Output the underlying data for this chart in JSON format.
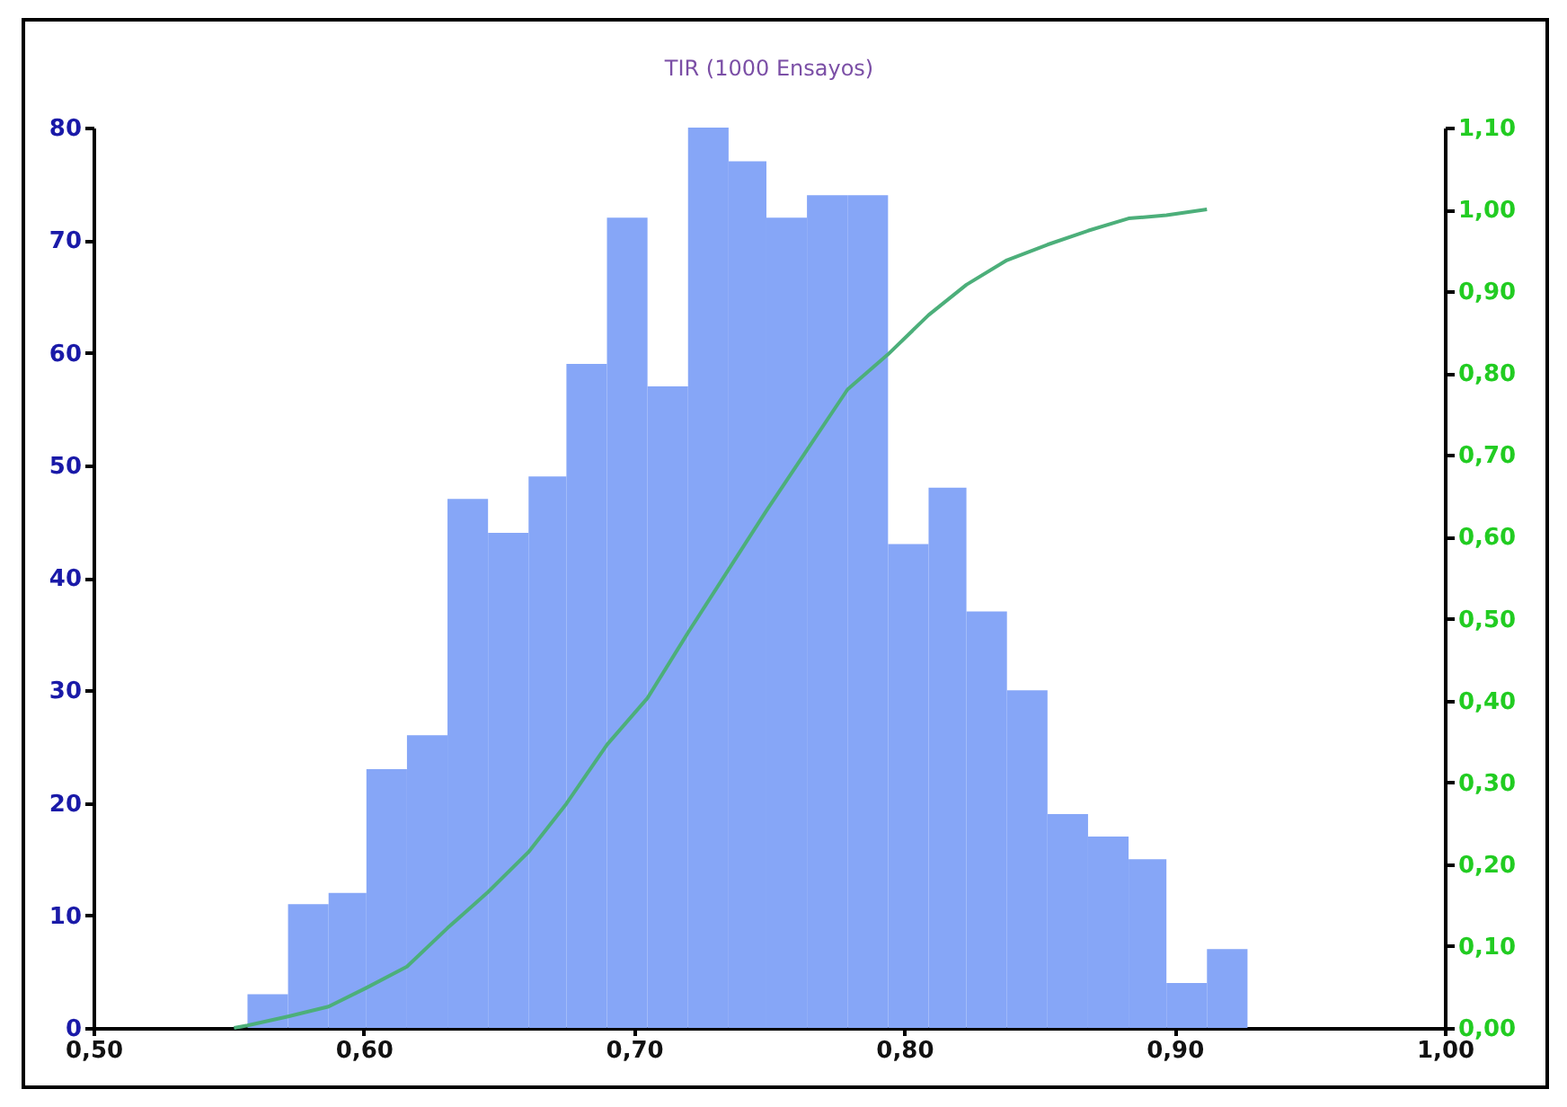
{
  "chart_data": {
    "type": "histogram",
    "title": "TIR (1000 Ensayos)",
    "bins": [
      0.557,
      0.572,
      0.587,
      0.601,
      0.616,
      0.631,
      0.646,
      0.661,
      0.675,
      0.69,
      0.705,
      0.72,
      0.735,
      0.749,
      0.764,
      0.779,
      0.794,
      0.809,
      0.823,
      0.838,
      0.853,
      0.868,
      0.883,
      0.897,
      0.912,
      0.927
    ],
    "series": [
      {
        "color": "#86a6f7",
        "values": [
          3,
          11,
          12,
          23,
          26,
          47,
          44,
          49,
          59,
          72,
          57,
          80,
          77,
          72,
          74,
          74,
          43,
          48,
          37,
          30,
          19,
          17,
          15,
          4,
          7
        ]
      },
      {
        "type": "line",
        "axis": "y2",
        "color": "#4caf7a",
        "x": [
          0.552,
          0.557,
          0.572,
          0.587,
          0.601,
          0.616,
          0.631,
          0.646,
          0.661,
          0.675,
          0.69,
          0.705,
          0.72,
          0.735,
          0.749,
          0.764,
          0.779,
          0.794,
          0.809,
          0.823,
          0.838,
          0.853,
          0.868,
          0.883,
          0.897,
          0.912
        ],
        "values": [
          0,
          0.003,
          0.014,
          0.026,
          0.049,
          0.075,
          0.122,
          0.166,
          0.215,
          0.274,
          0.346,
          0.403,
          0.483,
          0.56,
          0.632,
          0.706,
          0.78,
          0.823,
          0.871,
          0.908,
          0.938,
          0.957,
          0.974,
          0.989,
          0.993,
          1.0
        ]
      }
    ],
    "xlim": [
      0.5,
      1.0
    ],
    "xticks": [
      {
        "value": 0.5,
        "label": "0,50"
      },
      {
        "value": 0.6,
        "label": "0,60"
      },
      {
        "value": 0.7,
        "label": "0,70"
      },
      {
        "value": 0.8,
        "label": "0,80"
      },
      {
        "value": 0.9,
        "label": "0,90"
      },
      {
        "value": 1.0,
        "label": "1,00"
      }
    ],
    "ylim": [
      0,
      80
    ],
    "yticks": [
      0,
      10,
      20,
      30,
      40,
      50,
      60,
      70,
      80
    ],
    "y2lim": [
      0,
      1.1
    ],
    "y2ticks": [
      {
        "value": 0,
        "label": "0,00"
      },
      {
        "value": 0.1,
        "label": "0,10"
      },
      {
        "value": 0.2,
        "label": "0,20"
      },
      {
        "value": 0.3,
        "label": "0,30"
      },
      {
        "value": 0.4,
        "label": "0,40"
      },
      {
        "value": 0.5,
        "label": "0,50"
      },
      {
        "value": 0.6,
        "label": "0,60"
      },
      {
        "value": 0.7,
        "label": "0,70"
      },
      {
        "value": 0.8,
        "label": "0,80"
      },
      {
        "value": 0.9,
        "label": "0,90"
      },
      {
        "value": 1.0,
        "label": "1,00"
      },
      {
        "value": 1.1,
        "label": "1,10"
      }
    ],
    "grid": false,
    "legend": false
  }
}
